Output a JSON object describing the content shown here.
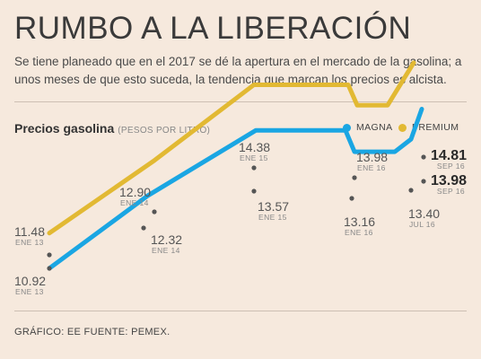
{
  "header": {
    "title": "RUMBO A LA LIBERACIÓN",
    "subtitle": "Se tiene planeado que en el 2017 se dé la apertura en el mercado de la gasolina; a unos meses de que esto suceda, la tendencia que marcan los precios es alcista."
  },
  "chart_data": {
    "type": "line",
    "title": "Precios gasolina",
    "unit": "(PESOS POR LITRO)",
    "legend_position": "top-right",
    "grid": false,
    "series": [
      {
        "name": "MAGNA",
        "color": "#1aa6e3",
        "points": [
          {
            "value": 10.92,
            "date": "ENE 13"
          },
          {
            "value": 12.32,
            "date": "ENE 14"
          },
          {
            "value": 13.57,
            "date": "ENE 15"
          },
          {
            "value": 13.57
          },
          {
            "value": 13.16,
            "date": "ENE 16"
          },
          {
            "value": 13.16
          },
          {
            "value": 13.4,
            "date": "JUL 16"
          },
          {
            "value": 13.98,
            "date": "SEP 16"
          }
        ]
      },
      {
        "name": "PREMIUM",
        "color": "#e2b933",
        "points": [
          {
            "value": 11.48,
            "date": "ENE 13"
          },
          {
            "value": 12.9,
            "date": "ENE 14"
          },
          {
            "value": 14.38,
            "date": "ENE 15"
          },
          {
            "value": 14.38
          },
          {
            "value": 13.98,
            "date": "ENE 16"
          },
          {
            "value": 13.98
          },
          {
            "value": 14.81,
            "date": "SEP 16"
          }
        ]
      }
    ],
    "labels": [
      {
        "value": "11.48",
        "date": "ENE 13"
      },
      {
        "value": "10.92",
        "date": "ENE 13"
      },
      {
        "value": "12.90",
        "date": "ENE 14"
      },
      {
        "value": "12.32",
        "date": "ENE 14"
      },
      {
        "value": "14.38",
        "date": "ENE 15"
      },
      {
        "value": "13.57",
        "date": "ENE 15"
      },
      {
        "value": "13.98",
        "date": "ENE 16"
      },
      {
        "value": "13.16",
        "date": "ENE 16"
      },
      {
        "value": "13.40",
        "date": "JUL 16"
      },
      {
        "value": "14.81",
        "date": "SEP 16"
      },
      {
        "value": "13.98",
        "date": "SEP 16"
      }
    ]
  },
  "footer": {
    "credit": "GRÁFICO: EE FUENTE: PEMEX."
  }
}
